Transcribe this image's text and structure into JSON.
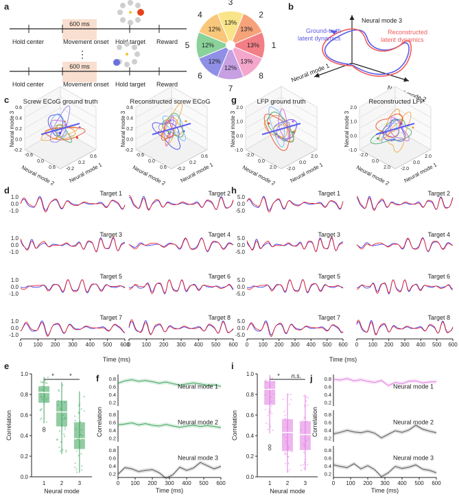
{
  "panel_labels": {
    "a": "a",
    "b": "b",
    "c": "c",
    "d": "d",
    "e": "e",
    "f": "f",
    "g": "g",
    "h": "h",
    "i": "i",
    "j": "j"
  },
  "panel_a": {
    "events": [
      "Hold center",
      "Movement onset",
      "Hold target",
      "Reward"
    ],
    "window_label": "600 ms",
    "ellipsis": "⋮",
    "target_pie": {
      "numbers": [
        "3",
        "2",
        "1",
        "8",
        "7",
        "6",
        "5",
        "4"
      ],
      "percents": [
        "13%",
        "13%",
        "13%",
        "13%",
        "12%",
        "12%",
        "12%",
        "12%"
      ],
      "colors": [
        "#f9e48a",
        "#f6a37a",
        "#f37f86",
        "#f4a6cc",
        "#c6a0e2",
        "#8f8fe6",
        "#8ad19a",
        "#f9c77a"
      ],
      "accent_colors": {
        "target_red": "#e8431d",
        "target_blue": "#6b70e0",
        "highlight": "#f9dfcf"
      }
    }
  },
  "panel_b": {
    "axes": [
      "Neural mode 3",
      "Neural mode 1",
      "Neural mode 2"
    ],
    "legend": [
      {
        "label": "Ground-truth latent dynamics",
        "color": "#5a5ae6"
      },
      {
        "label": "Reconstructed latent dynamics",
        "color": "#f05a5a"
      }
    ]
  },
  "panel_c": {
    "titles": [
      "Screw ECoG ground truth",
      "Reconstructed  screw ECoG"
    ],
    "axis_labels": [
      "Neural mode 3",
      "Neural mode 2",
      "Neural mode 1"
    ],
    "ticks_z": [
      "0.6",
      "0.4",
      "0.2",
      "0.0",
      "-0.2"
    ],
    "ticks_x": [
      "-0.6",
      "0.0",
      "0.6"
    ],
    "ticks_y": [
      "-0.2",
      "0.2",
      "0.6"
    ]
  },
  "panel_g": {
    "titles": [
      "LFP ground truth",
      "Reconstructed  LFP"
    ],
    "axis_labels": [
      "Neural mode 3",
      "Neural mode 2",
      "Neural mode 1"
    ],
    "ticks_z": [
      "2.0",
      "1.0",
      "0.0",
      "-1.0"
    ],
    "ticks_x": [
      "-2.0",
      "0.0",
      "2.0"
    ],
    "ticks_y": [
      "-2.0",
      "0.0",
      "2.0"
    ]
  },
  "panel_d": {
    "targets": [
      "Target 1",
      "Target 2",
      "Target 3",
      "Target 4",
      "Target 5",
      "Target 6",
      "Target 7",
      "Target 8"
    ],
    "yticks": [
      "1.0",
      "0.0",
      "-1.0"
    ],
    "xticks": [
      "0",
      "100",
      "200",
      "300",
      "400",
      "500",
      "600"
    ],
    "xlabel": "Time  (ms)"
  },
  "panel_h": {
    "targets": [
      "Target 1",
      "Target 2",
      "Target 3",
      "Target 4",
      "Target 5",
      "Target 6",
      "Target 7",
      "Target 8"
    ],
    "yticks": [
      "5.0",
      "0.0",
      "-5.0"
    ],
    "xticks": [
      "0",
      "100",
      "200",
      "300",
      "400",
      "500",
      "600"
    ],
    "xlabel": "Time  (ms)"
  },
  "trace_colors": {
    "ground_truth": "#3b3bf0",
    "reconstructed": "#e8262a",
    "pink": "#e07ae0",
    "green": "#3aa35a",
    "gray": "#555555"
  },
  "chart_data": [
    {
      "type": "box",
      "panel": "e",
      "categories": [
        "1",
        "2",
        "3"
      ],
      "xlabel": "Neural mode",
      "ylabel": "Correlation",
      "ylim": [
        0.0,
        1.0
      ],
      "yticks": [
        "0.0",
        "0.2",
        "0.4",
        "0.6",
        "0.8",
        "1.0"
      ],
      "boxes": [
        {
          "q1": 0.72,
          "median": 0.82,
          "q3": 0.88,
          "whisker_low": 0.52,
          "whisker_high": 0.97
        },
        {
          "q1": 0.49,
          "median": 0.63,
          "q3": 0.74,
          "whisker_low": 0.22,
          "whisker_high": 0.92
        },
        {
          "q1": 0.27,
          "median": 0.37,
          "q3": 0.53,
          "whisker_low": 0.04,
          "whisker_high": 0.83
        }
      ],
      "outliers": [
        [
          1,
          0.47
        ],
        [
          1,
          0.45
        ]
      ],
      "significance": [
        "*",
        "*"
      ],
      "color": "#3aa35a"
    },
    {
      "type": "line",
      "panel": "f",
      "xlabel": "Time  (ms)",
      "ylabel": "Correlation",
      "xticks": [
        "0",
        "100",
        "200",
        "300",
        "400",
        "500",
        "600"
      ],
      "yticks": [
        "0.8",
        "0.6",
        "0.4",
        "0.2"
      ],
      "series": [
        {
          "name": "Neural mode 1",
          "values": [
            0.68,
            0.74,
            0.77,
            0.73,
            0.75,
            0.72,
            0.68,
            0.71,
            0.67,
            0.63,
            0.66,
            0.69,
            0.66,
            0.63,
            0.64,
            0.6
          ]
        },
        {
          "name": "Neural mode 2",
          "values": [
            0.53,
            0.55,
            0.58,
            0.53,
            0.56,
            0.52,
            0.5,
            0.54,
            0.5,
            0.47,
            0.5,
            0.52,
            0.49,
            0.51,
            0.49,
            0.46
          ]
        },
        {
          "name": "Neural mode 3",
          "values": [
            0.18,
            0.35,
            0.32,
            0.25,
            0.28,
            0.3,
            0.22,
            0.08,
            0.17,
            0.36,
            0.28,
            0.34,
            0.48,
            0.4,
            0.32,
            0.38
          ]
        }
      ]
    },
    {
      "type": "box",
      "panel": "i",
      "categories": [
        "1",
        "2",
        "3"
      ],
      "xlabel": "Neural mode",
      "ylabel": "Correlation",
      "ylim": [
        0.0,
        1.0
      ],
      "yticks": [
        "0.0",
        "0.2",
        "0.4",
        "0.6",
        "0.8",
        "1.0"
      ],
      "boxes": [
        {
          "q1": 0.7,
          "median": 0.85,
          "q3": 0.93,
          "whisker_low": 0.42,
          "whisker_high": 0.99
        },
        {
          "q1": 0.25,
          "median": 0.43,
          "q3": 0.56,
          "whisker_low": 0.04,
          "whisker_high": 0.81
        },
        {
          "q1": 0.26,
          "median": 0.41,
          "q3": 0.54,
          "whisker_low": 0.06,
          "whisker_high": 0.8
        }
      ],
      "outliers": [
        [
          1,
          0.3
        ],
        [
          1,
          0.27
        ]
      ],
      "significance": [
        "*",
        "n.s."
      ],
      "color": "#e07ae0"
    },
    {
      "type": "line",
      "panel": "j",
      "xlabel": "Time  (ms)",
      "ylabel": "Correlation",
      "xticks": [
        "0",
        "100",
        "200",
        "300",
        "400",
        "500",
        "600"
      ],
      "yticks": [
        "0.8",
        "0.6",
        "0.4",
        "0.2"
      ],
      "series": [
        {
          "name": "Neural mode 1",
          "values": [
            0.78,
            0.76,
            0.8,
            0.74,
            0.77,
            0.73,
            0.7,
            0.75,
            0.62,
            0.7,
            0.67,
            0.73,
            0.74,
            0.69,
            0.71,
            0.72
          ]
        },
        {
          "name": "Neural mode 2",
          "values": [
            0.3,
            0.34,
            0.39,
            0.35,
            0.33,
            0.37,
            0.32,
            0.2,
            0.29,
            0.38,
            0.34,
            0.4,
            0.52,
            0.42,
            0.37,
            0.33
          ]
        },
        {
          "name": "Neural mode 3",
          "values": [
            0.42,
            0.38,
            0.35,
            0.45,
            0.32,
            0.4,
            0.3,
            0.12,
            0.22,
            0.38,
            0.33,
            0.36,
            0.42,
            0.31,
            0.28,
            0.22
          ]
        }
      ]
    }
  ]
}
